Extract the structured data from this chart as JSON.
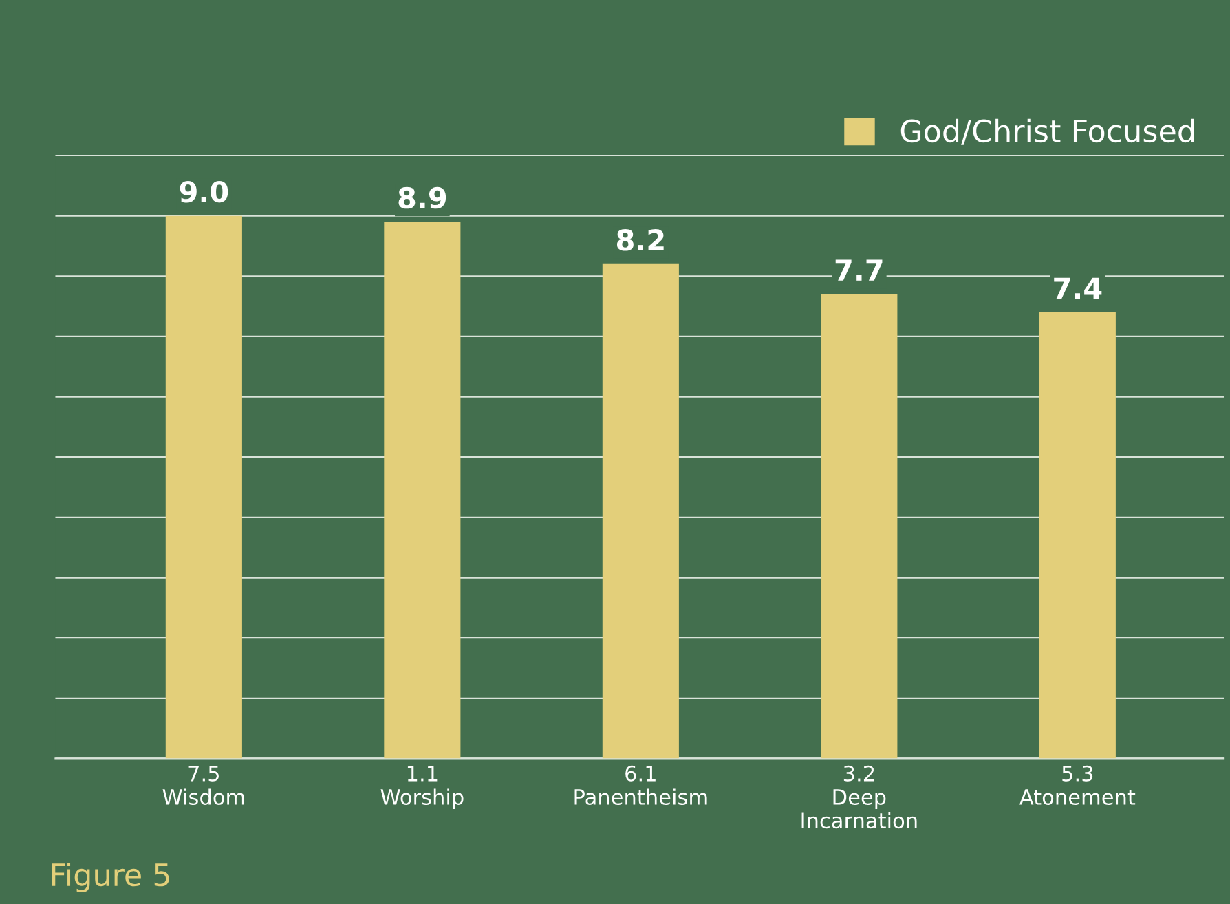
{
  "chart_data": {
    "type": "bar",
    "categories": [
      "7.5\nWisdom",
      "1.1\nWorship",
      "6.1\nPanentheism",
      "3.2\nDeep\nIncarnation",
      "5.3\nAtonement"
    ],
    "series": [
      {
        "name": "God/Christ Focused",
        "color": "#e3cf7a",
        "values": [
          9.0,
          8.9,
          8.2,
          7.7,
          7.4
        ],
        "value_labels": [
          "9.0",
          "8.9",
          "8.2",
          "7.7",
          "7.4"
        ]
      }
    ],
    "ylim": [
      0,
      10
    ],
    "yticks": [
      {
        "value": 0,
        "label": null
      },
      {
        "value": 1,
        "label": null
      },
      {
        "value": 2,
        "label": null
      },
      {
        "value": 3,
        "label": null
      },
      {
        "value": 4,
        "label": null
      },
      {
        "value": 5,
        "label": null
      },
      {
        "value": 6,
        "label": null
      },
      {
        "value": 7,
        "label": null
      },
      {
        "value": 8,
        "label": null
      },
      {
        "value": 9,
        "label": null
      },
      {
        "value": 10,
        "label": null
      }
    ],
    "tick_labels": "x",
    "grid": "y",
    "legend": "top right",
    "annotations": [
      "Figure 5"
    ]
  }
}
